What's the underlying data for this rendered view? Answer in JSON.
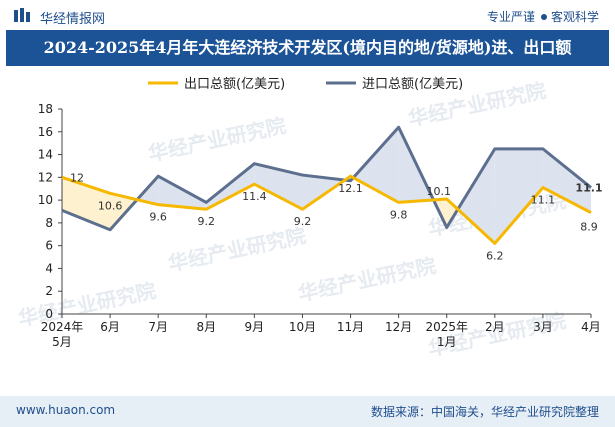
{
  "header": {
    "brand": "华经情报网",
    "tagline_left": "专业严谨",
    "tagline_right": "客观科学",
    "title": "2024-2025年4月年大连经济技术开发区(境内目的地/货源地)进、出口额"
  },
  "footer": {
    "website": "www.huaon.com",
    "source": "数据来源：中国海关，华经产业研究院整理"
  },
  "watermark": {
    "text": "华经产业研究院",
    "url": "www.huaon.com"
  },
  "colors": {
    "export": "#f6b800",
    "import": "#5c6f8e",
    "fill_export_higher": "#fdf1d0",
    "fill_import_higher": "#dde3ee",
    "title_bg": "#1b5396"
  },
  "chart_data": {
    "type": "line",
    "title": "2024-2025年4月年大连经济技术开发区(境内目的地/货源地)进、出口额",
    "categories": [
      "2024年5月",
      "6月",
      "7月",
      "8月",
      "9月",
      "10月",
      "11月",
      "12月",
      "2025年1月",
      "2月",
      "3月",
      "4月"
    ],
    "series": [
      {
        "name": "出口总额(亿美元)",
        "values": [
          12,
          10.6,
          9.6,
          9.2,
          11.4,
          9.2,
          12.1,
          9.8,
          10.1,
          6.2,
          11.1,
          8.9
        ],
        "labels": [
          "12",
          "10.6",
          "9.6",
          "9.2",
          "11.4",
          "9.2",
          "12.1",
          "9.8",
          "10.1",
          "6.2",
          "11.1",
          "8.9"
        ]
      },
      {
        "name": "进口总额(亿美元)",
        "values": [
          9.1,
          7.4,
          12.1,
          9.8,
          13.2,
          12.2,
          11.7,
          16.4,
          7.6,
          14.5,
          14.5,
          11.1
        ],
        "labels": [
          "",
          "",
          "",
          "",
          "",
          "",
          "",
          "",
          "",
          "",
          "",
          "11.1"
        ]
      }
    ],
    "ylim": [
      0,
      18
    ],
    "yticks": [
      0,
      2,
      4,
      6,
      8,
      10,
      12,
      14,
      16,
      18
    ],
    "ytick_labels": [
      "0",
      "2",
      "4",
      "6",
      "8",
      "10",
      "12",
      "14",
      "16",
      "18"
    ],
    "xlabel": "",
    "ylabel": "",
    "legend": "top-center",
    "grid": false
  }
}
